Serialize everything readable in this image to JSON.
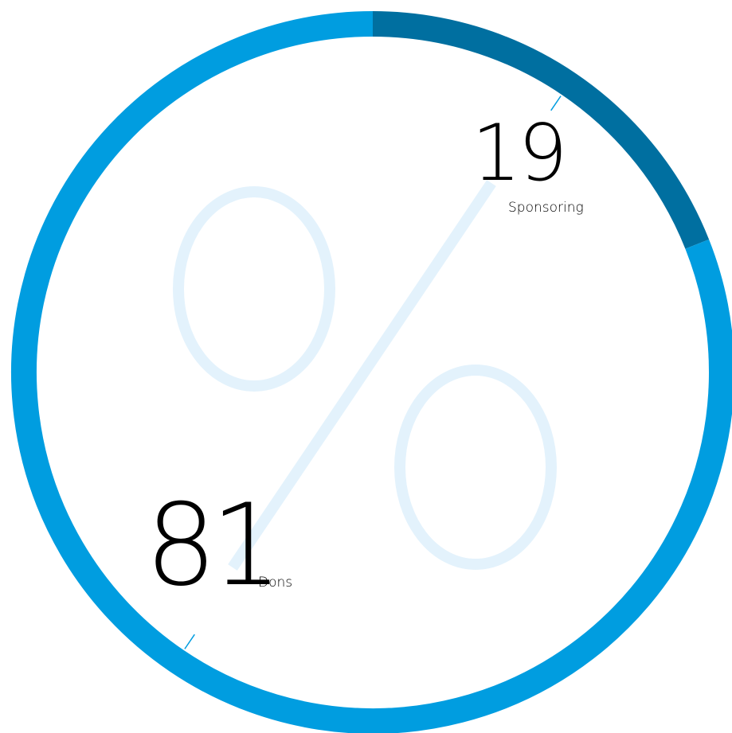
{
  "chart_data": {
    "type": "pie",
    "style": "donut",
    "slices": [
      {
        "label": "Sponsoring",
        "value": 19,
        "value_label": "19",
        "color": "#006FA0"
      },
      {
        "label": "Dons",
        "value": 81,
        "value_label": "81",
        "color": "#009DE0"
      }
    ],
    "background_symbol": "%",
    "background_symbol_color": "#E3F2FC",
    "text_color": "#000000",
    "leader_color": "#009DE0"
  }
}
